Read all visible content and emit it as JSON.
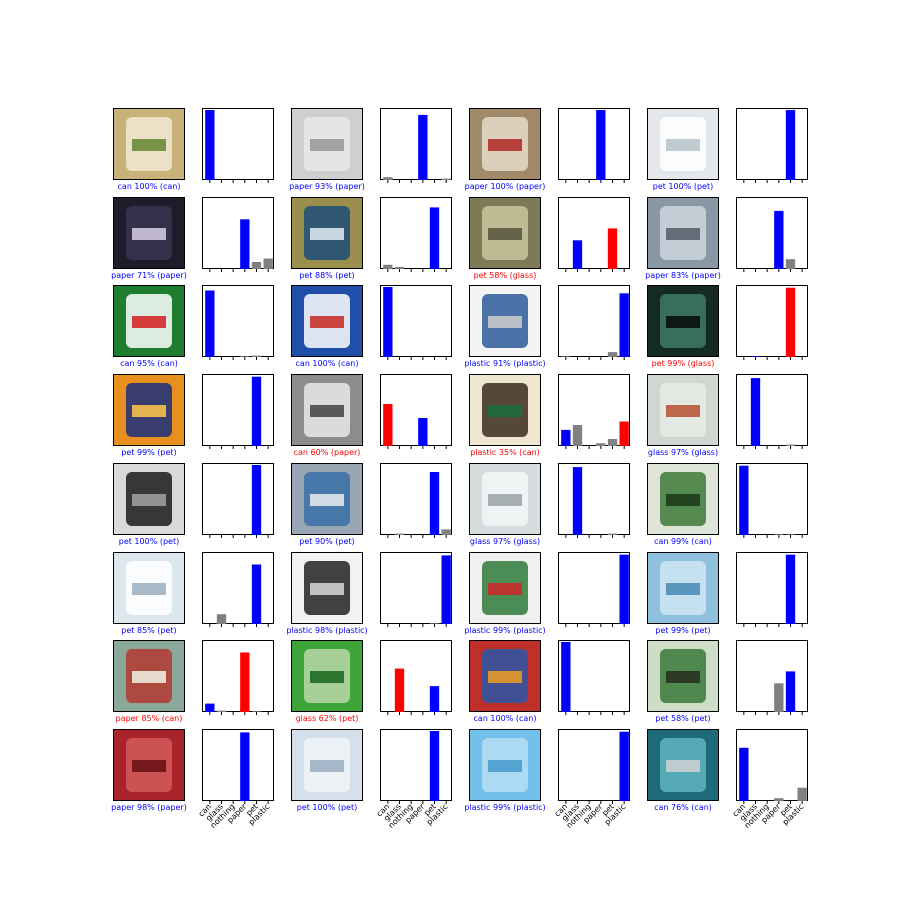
{
  "figure": {
    "label_colors": {
      "correct": "#0000ff",
      "wrong": "#ff0000",
      "other": "#808080"
    }
  },
  "chart_data": {
    "type": "bar",
    "categories": [
      "can",
      "glass",
      "nothing",
      "paper",
      "pet",
      "plastic"
    ],
    "ylim": [
      0,
      1
    ],
    "grid": false,
    "legend": "none",
    "panels": [
      {
        "image": "cans-in-case",
        "caption": "can 100% (can)",
        "predicted": "can",
        "true": "can",
        "values": [
          1.0,
          0,
          0,
          0,
          0,
          0
        ]
      },
      {
        "image": "gray-paper-sheet",
        "caption": "paper 93% (paper)",
        "predicted": "paper",
        "true": "paper",
        "values": [
          0.04,
          0,
          0,
          0.93,
          0,
          0.02
        ]
      },
      {
        "image": "printed-paper-pile",
        "caption": "paper 100% (paper)",
        "predicted": "paper",
        "true": "paper",
        "values": [
          0,
          0,
          0,
          1.0,
          0,
          0
        ]
      },
      {
        "image": "clear-water-bottle",
        "caption": "pet 100% (pet)",
        "predicted": "pet",
        "true": "pet",
        "values": [
          0,
          0,
          0,
          0,
          1.0,
          0
        ]
      },
      {
        "image": "dark-paper",
        "caption": "paper 71% (paper)",
        "predicted": "paper",
        "true": "paper",
        "values": [
          0,
          0,
          0,
          0.71,
          0.1,
          0.15
        ]
      },
      {
        "image": "crystal-pet-bottle",
        "caption": "pet 88% (pet)",
        "predicted": "pet",
        "true": "pet",
        "values": [
          0.06,
          0.03,
          0,
          0,
          0.88,
          0
        ]
      },
      {
        "image": "glass-bottle-bottom",
        "caption": "pet 58% (glass)",
        "predicted": "pet",
        "true": "glass",
        "values": [
          0,
          0.41,
          0,
          0,
          0.58,
          0
        ]
      },
      {
        "image": "crushed-pet-bottle",
        "caption": "paper 83% (paper)",
        "predicted": "paper",
        "true": "paper",
        "values": [
          0,
          0,
          0,
          0.83,
          0.14,
          0
        ]
      },
      {
        "image": "mountain-dew-can",
        "caption": "can 95% (can)",
        "predicted": "can",
        "true": "can",
        "values": [
          0.95,
          0,
          0,
          0.01,
          0.02,
          0
        ]
      },
      {
        "image": "blue-cans-row",
        "caption": "can 100% (can)",
        "predicted": "can",
        "true": "can",
        "values": [
          1.0,
          0,
          0,
          0,
          0,
          0
        ]
      },
      {
        "image": "white-plastic-jug",
        "caption": "plastic 91% (plastic)",
        "predicted": "plastic",
        "true": "plastic",
        "values": [
          0.01,
          0,
          0,
          0,
          0.07,
          0.91
        ]
      },
      {
        "image": "green-glass-neck",
        "caption": "pet 99% (glass)",
        "predicted": "pet",
        "true": "glass",
        "values": [
          0,
          0.01,
          0,
          0,
          0.99,
          0
        ]
      },
      {
        "image": "fanta-bottle",
        "caption": "pet 99% (pet)",
        "predicted": "pet",
        "true": "pet",
        "values": [
          0,
          0,
          0,
          0,
          0.99,
          0
        ]
      },
      {
        "image": "newspaper-stack",
        "caption": "can 60% (paper)",
        "predicted": "can",
        "true": "paper",
        "values": [
          0.6,
          0,
          0,
          0.4,
          0,
          0
        ]
      },
      {
        "image": "starbucks-bottle",
        "caption": "plastic 35% (can)",
        "predicted": "plastic",
        "true": "can",
        "values": [
          0.23,
          0.3,
          0,
          0.04,
          0.1,
          0.35
        ]
      },
      {
        "image": "glass-jar-label",
        "caption": "glass 97% (glass)",
        "predicted": "glass",
        "true": "glass",
        "values": [
          0,
          0.97,
          0,
          0,
          0.02,
          0
        ]
      },
      {
        "image": "crushed-pet-black-spots",
        "caption": "pet 100% (pet)",
        "predicted": "pet",
        "true": "pet",
        "values": [
          0,
          0,
          0,
          0,
          1.0,
          0
        ]
      },
      {
        "image": "blue-label-bottle",
        "caption": "pet 90% (pet)",
        "predicted": "pet",
        "true": "pet",
        "values": [
          0,
          0.02,
          0,
          0,
          0.9,
          0.08
        ]
      },
      {
        "image": "clear-glass-bottle",
        "caption": "glass 97% (glass)",
        "predicted": "glass",
        "true": "glass",
        "values": [
          0,
          0.97,
          0,
          0,
          0.02,
          0
        ]
      },
      {
        "image": "korean-drink-cans",
        "caption": "can 99% (can)",
        "predicted": "can",
        "true": "can",
        "values": [
          0.99,
          0,
          0,
          0.01,
          0.01,
          0
        ]
      },
      {
        "image": "water-bottle-label",
        "caption": "pet 85% (pet)",
        "predicted": "pet",
        "true": "pet",
        "values": [
          0,
          0.14,
          0,
          0,
          0.85,
          0
        ]
      },
      {
        "image": "white-plastic-bottle",
        "caption": "plastic 98% (plastic)",
        "predicted": "plastic",
        "true": "plastic",
        "values": [
          0,
          0,
          0,
          0,
          0.01,
          0.98
        ]
      },
      {
        "image": "detergent-jug",
        "caption": "plastic 99% (plastic)",
        "predicted": "plastic",
        "true": "plastic",
        "values": [
          0,
          0,
          0,
          0,
          0,
          0.99
        ]
      },
      {
        "image": "blue-pet-bottle",
        "caption": "pet 99% (pet)",
        "predicted": "pet",
        "true": "pet",
        "values": [
          0,
          0,
          0,
          0,
          0.99,
          0
        ]
      },
      {
        "image": "first-aid-case",
        "caption": "paper 85% (can)",
        "predicted": "paper",
        "true": "can",
        "values": [
          0.12,
          0.02,
          0,
          0.85,
          0.01,
          0
        ]
      },
      {
        "image": "green-bottles",
        "caption": "glass 62% (pet)",
        "predicted": "glass",
        "true": "pet",
        "values": [
          0,
          0.62,
          0,
          0,
          0.37,
          0
        ]
      },
      {
        "image": "soda-cans-group",
        "caption": "can 100% (can)",
        "predicted": "can",
        "true": "can",
        "values": [
          1.0,
          0,
          0,
          0,
          0,
          0
        ]
      },
      {
        "image": "green-label-pack",
        "caption": "pet 58% (pet)",
        "predicted": "pet",
        "true": "pet",
        "values": [
          0,
          0,
          0,
          0.41,
          0.58,
          0
        ]
      },
      {
        "image": "red-gift-paper",
        "caption": "paper 98% (paper)",
        "predicted": "paper",
        "true": "paper",
        "values": [
          0,
          0,
          0,
          0.98,
          0,
          0
        ]
      },
      {
        "image": "clear-pet-water",
        "caption": "pet 100% (pet)",
        "predicted": "pet",
        "true": "pet",
        "values": [
          0,
          0,
          0,
          0,
          1.0,
          0
        ]
      },
      {
        "image": "light-blue-plastic",
        "caption": "plastic 99% (plastic)",
        "predicted": "plastic",
        "true": "plastic",
        "values": [
          0,
          0,
          0,
          0,
          0,
          0.99
        ]
      },
      {
        "image": "teal-can",
        "caption": "can 76% (can)",
        "predicted": "can",
        "true": "can",
        "values": [
          0.76,
          0,
          0,
          0.04,
          0,
          0.19
        ]
      }
    ]
  }
}
